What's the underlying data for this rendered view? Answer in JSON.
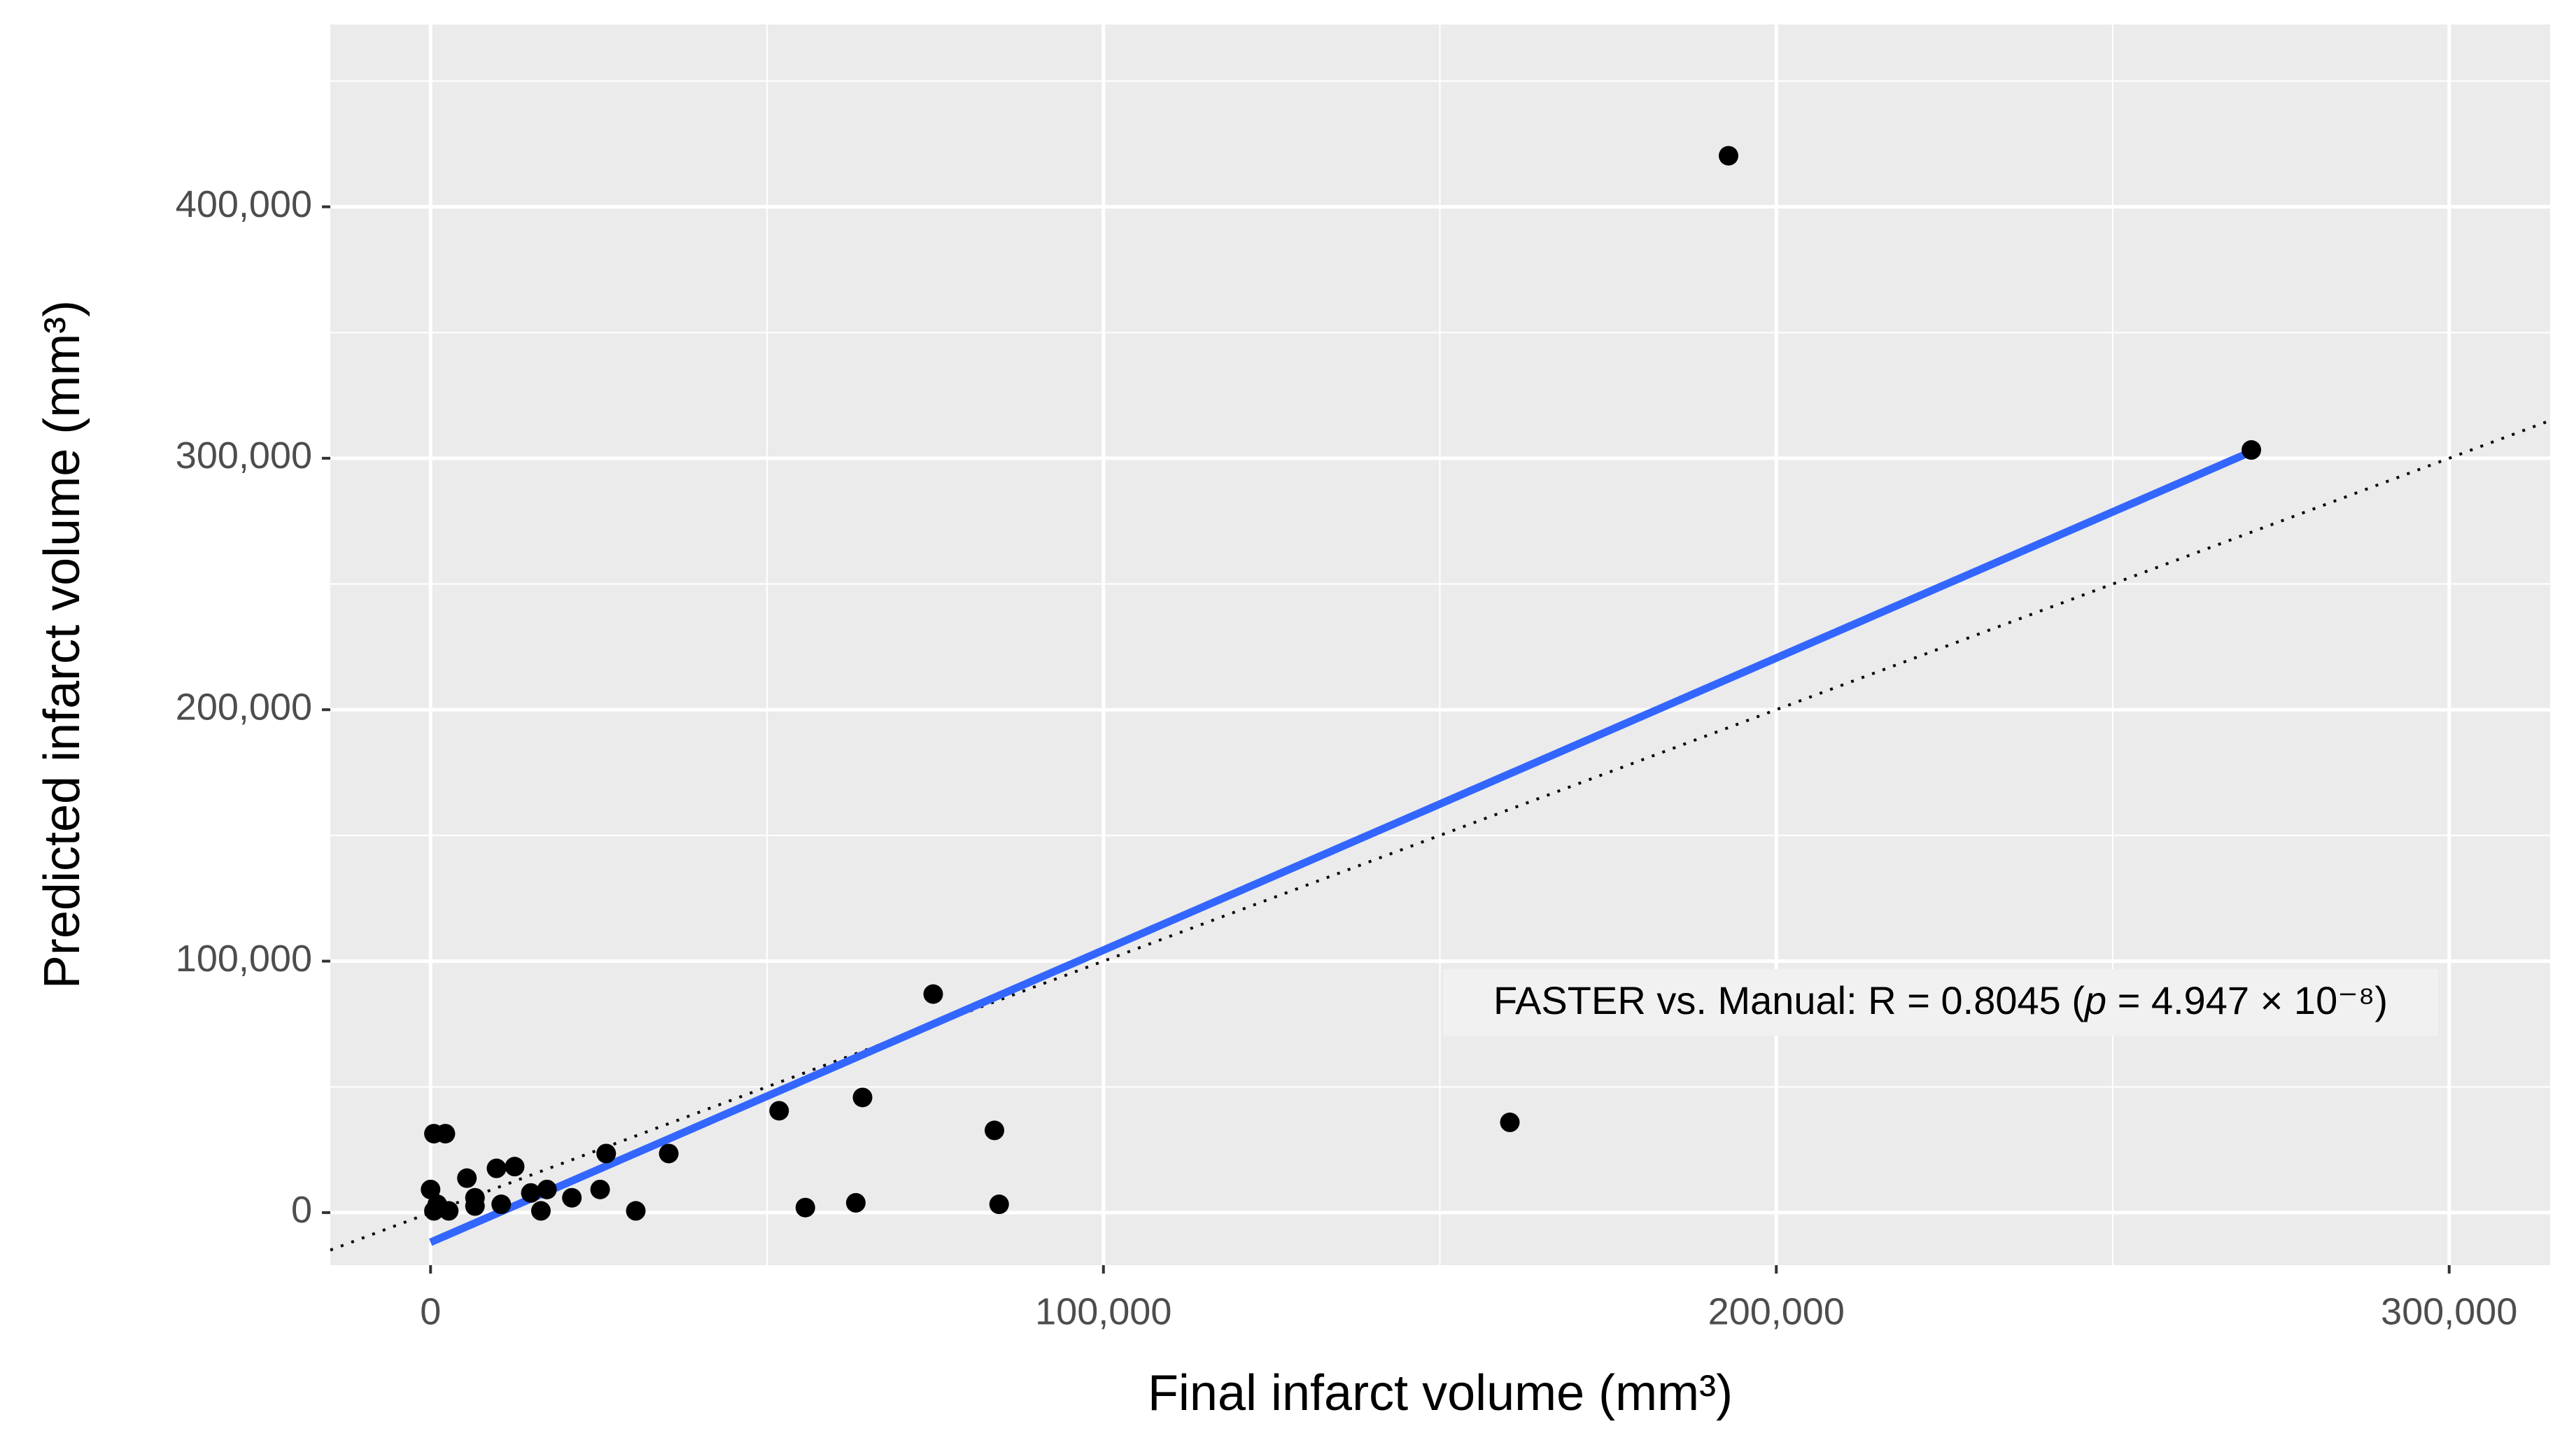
{
  "chart_data": {
    "type": "scatter",
    "xlabel": "Final infarct volume  (mm³)",
    "ylabel": "Predicted infarct volume  (mm³)",
    "annotation": [
      "FASTER vs. Manual: R = 0.8045 (",
      "p",
      " = 4.947 × 10⁻⁸)"
    ],
    "x": [
      192900,
      270600,
      160400,
      74700,
      64200,
      51800,
      83800,
      84500,
      63200,
      55700,
      35400,
      30500,
      26100,
      25200,
      21000,
      17300,
      16400,
      14900,
      12500,
      9800,
      10500,
      6600,
      6600,
      5400,
      2700,
      2200,
      500,
      0,
      500,
      1000
    ],
    "y": [
      420300,
      303300,
      35900,
      86900,
      45800,
      40500,
      32700,
      3300,
      3900,
      2000,
      23500,
      700,
      23500,
      9200,
      5900,
      9200,
      700,
      7800,
      18300,
      17600,
      3300,
      2600,
      5900,
      13700,
      700,
      31400,
      31400,
      9200,
      700,
      3300
    ],
    "color": "#000000",
    "fit_line": {
      "x": [
        0,
        270600
      ],
      "y": [
        -11800,
        302600
      ],
      "color": "#3366ff"
    },
    "identity_line": true,
    "xlim": [
      -14900,
      315000
    ],
    "ylim": [
      -20900,
      472500
    ],
    "xticks": [
      0,
      {
        "value": 100000,
        "label": "100,000"
      },
      {
        "value": 200000,
        "label": "200,000"
      },
      {
        "value": 300000,
        "label": "300,000"
      }
    ],
    "yticks": [
      0,
      {
        "value": 100000,
        "label": "100,000"
      },
      {
        "value": 200000,
        "label": "200,000"
      },
      {
        "value": 300000,
        "label": "300,000"
      },
      {
        "value": 400000,
        "label": "400,000"
      }
    ],
    "xminor": [
      50000,
      150000,
      250000
    ],
    "yminor": [
      50000,
      150000,
      250000,
      350000,
      450000
    ],
    "grid": true
  }
}
